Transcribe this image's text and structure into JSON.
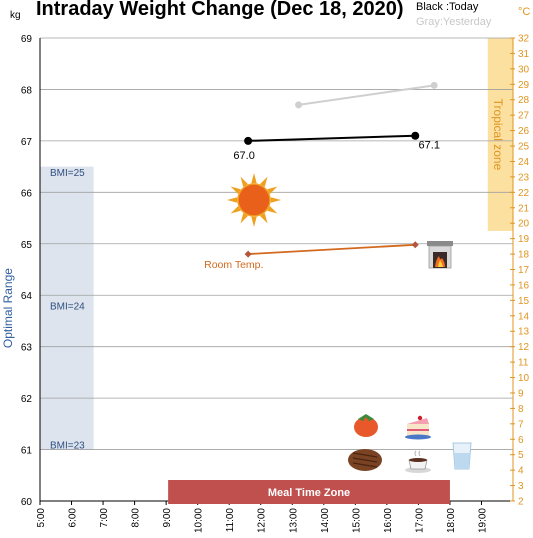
{
  "chart_data": {
    "type": "line",
    "title": "Intraday Weight Change (Dec 18, 2020)",
    "legend": {
      "today": "Black :Today",
      "yesterday": "Gray:Yesterday"
    },
    "y_axis": {
      "label": "kg",
      "range": [
        60,
        69
      ],
      "ticks": [
        60,
        61,
        62,
        63,
        64,
        65,
        66,
        67,
        68,
        69
      ]
    },
    "y2_axis": {
      "label": "°C",
      "range": [
        2,
        32
      ],
      "ticks": [
        2,
        3,
        4,
        5,
        6,
        7,
        8,
        9,
        10,
        11,
        12,
        13,
        14,
        15,
        16,
        17,
        18,
        19,
        20,
        21,
        22,
        23,
        24,
        25,
        26,
        27,
        28,
        29,
        30,
        31,
        32
      ]
    },
    "x_axis": {
      "range_hours": [
        5,
        20
      ],
      "ticks": [
        "5:00",
        "6:00",
        "7:00",
        "8:00",
        "9:00",
        "10:00",
        "11:00",
        "12:00",
        "13:00",
        "14:00",
        "15:00",
        "16:00",
        "17:00",
        "18:00",
        "19:00"
      ]
    },
    "series": [
      {
        "key": "today",
        "color": "#000000",
        "points": [
          {
            "x": 11.6,
            "y": 67.0,
            "label": "67.0"
          },
          {
            "x": 16.9,
            "y": 67.1,
            "label": "67.1"
          }
        ]
      },
      {
        "key": "yesterday",
        "color": "#cfcfcf",
        "points": [
          {
            "x": 13.2,
            "y": 67.7
          },
          {
            "x": 17.5,
            "y": 68.08
          }
        ]
      },
      {
        "key": "room_temp",
        "name": "Room Temp.",
        "axis": "y2",
        "color": "#d2691e",
        "points": [
          {
            "x": 11.6,
            "y": 18.0
          },
          {
            "x": 16.9,
            "y": 18.6
          }
        ]
      }
    ],
    "bands": [
      {
        "label": "Optimal Range",
        "axis": "y",
        "range": [
          61,
          66.5
        ],
        "x_range": [
          5,
          6.7
        ],
        "color": "#dde4ee"
      },
      {
        "label": "Tropical zone",
        "axis": "y2",
        "range": [
          19.5,
          32
        ],
        "x_range": [
          19.2,
          20
        ],
        "color": "#fbe0a0"
      },
      {
        "label": "Meal Time Zone",
        "x_range": [
          9,
          18
        ],
        "color": "#c0504d"
      }
    ],
    "bmi_marks": [
      {
        "label": "BMI=25",
        "y": 66.4
      },
      {
        "label": "BMI=24",
        "y": 63.8
      },
      {
        "label": "BMI=23",
        "y": 61.1
      }
    ],
    "icons": [
      "sun-icon",
      "fireplace-icon",
      "persimmon-icon",
      "cake-icon",
      "steak-icon",
      "coffee-icon",
      "water-glass-icon"
    ],
    "grid": true
  }
}
